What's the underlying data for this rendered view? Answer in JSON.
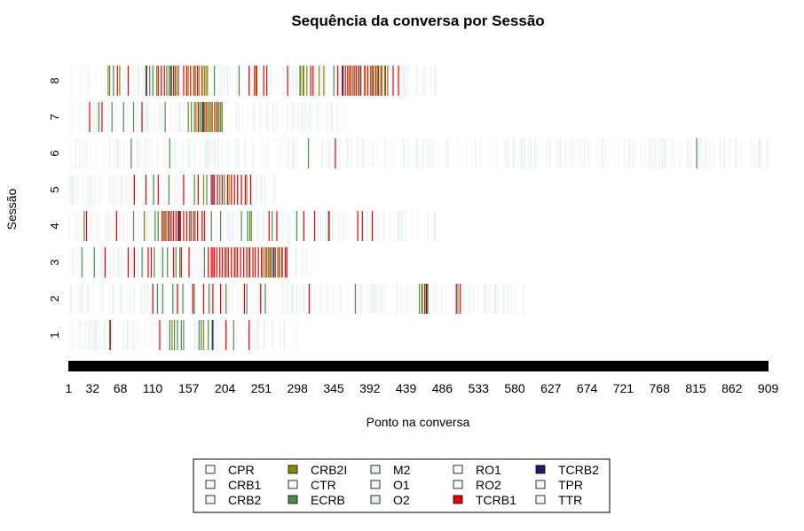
{
  "chart_data": {
    "type": "heatmap",
    "title": "Sequência da conversa por Sessão",
    "xlabel": "Ponto na conversa",
    "ylabel": "Sessão",
    "xlim": [
      1,
      909
    ],
    "x_ticks": [
      "1",
      "32",
      "68",
      "110",
      "157",
      "204",
      "251",
      "298",
      "345",
      "392",
      "439",
      "486",
      "533",
      "580",
      "627",
      "674",
      "721",
      "768",
      "815",
      "862",
      "909"
    ],
    "sessions": [
      {
        "label": "1",
        "length": 297,
        "events": [
          {
            "code": "TCRB1",
            "points": [
              55,
              119,
              205,
              235
            ]
          },
          {
            "code": "ECRB",
            "points": [
              54,
              132,
              138,
              142,
              147,
              150,
              170,
              173,
              182,
              187,
              215
            ]
          },
          {
            "code": "CRB2I",
            "points": [
              135,
              176
            ]
          },
          {
            "code": "TCRB2",
            "points": [
              188
            ]
          }
        ]
      },
      {
        "label": "2",
        "length": 591,
        "events": [
          {
            "code": "TCRB1",
            "points": [
              110,
              142,
              162,
              176,
              188,
              198,
              229,
              250,
              313,
              463,
              504,
              509
            ]
          },
          {
            "code": "ECRB",
            "points": [
              116,
              123,
              136,
              149,
              164,
              183,
              205,
              232,
              256,
              373,
              456,
              460,
              467,
              506
            ]
          },
          {
            "code": "CRB2I",
            "points": [
              459,
              466
            ]
          },
          {
            "code": "TCRB2",
            "points": [
              465
            ]
          }
        ]
      },
      {
        "label": "3",
        "length": 322,
        "events": [
          {
            "code": "TCRB1",
            "points": [
              48,
              78,
              86,
              104,
              108,
              137,
              147,
              157,
              182,
              186,
              188,
              190,
              193,
              197,
              200,
              205,
              208,
              212,
              216,
              220,
              224,
              228,
              232,
              236,
              240,
              243,
              247,
              251,
              256,
              262,
              269,
              274,
              278,
              282,
              284
            ]
          },
          {
            "code": "ECRB",
            "points": [
              18,
              34,
              96,
              112,
              123,
              129,
              140,
              145,
              177,
              203,
              218,
              235,
              258,
              265,
              277
            ]
          },
          {
            "code": "CRB2I",
            "points": [
              253,
              260,
              263,
              272
            ]
          },
          {
            "code": "TCRB2",
            "points": [
              267
            ]
          }
        ]
      },
      {
        "label": "4",
        "length": 478,
        "events": [
          {
            "code": "TCRB1",
            "points": [
              24,
              63,
              122,
              127,
              130,
              134,
              137,
              140,
              143,
              146,
              150,
              154,
              158,
              163,
              168,
              174,
              177,
              261,
              271,
              306,
              320,
              339,
              376,
              382,
              395
            ]
          },
          {
            "code": "ECRB",
            "points": [
              21,
              85,
              113,
              117,
              125,
              132,
              145,
              160,
              165,
              186,
              198,
              225,
              233,
              236,
              265,
              297,
              338
            ]
          },
          {
            "code": "CRB2I",
            "points": [
              99,
              124,
              238
            ]
          },
          {
            "code": "TCRB2",
            "points": [
              144
            ]
          }
        ]
      },
      {
        "label": "5",
        "length": 270,
        "events": [
          {
            "code": "TCRB1",
            "points": [
              86,
              101,
              117,
              150,
              169,
              186,
              190,
              194,
              200,
              207,
              212,
              216,
              220,
              225,
              230,
              237
            ]
          },
          {
            "code": "ECRB",
            "points": [
              111,
              131,
              164,
              180,
              197,
              203,
              232
            ]
          },
          {
            "code": "CRB2I",
            "points": [
              176,
              209
            ]
          },
          {
            "code": "TCRB2",
            "points": [
              188
            ]
          }
        ]
      },
      {
        "label": "6",
        "length": 909,
        "events": [
          {
            "code": "TCRB1",
            "points": [
              347
            ]
          },
          {
            "code": "ECRB",
            "points": [
              82,
              132,
              312,
              816
            ]
          }
        ]
      },
      {
        "label": "7",
        "length": 361,
        "events": [
          {
            "code": "TCRB1",
            "points": [
              28,
              44,
              96,
              169,
              179,
              187,
              194
            ]
          },
          {
            "code": "ECRB",
            "points": [
              40,
              57,
              72,
              85,
              126,
              156,
              164,
              173,
              176,
              183,
              190,
              196,
              200
            ]
          },
          {
            "code": "CRB2I",
            "points": [
              160,
              166,
              171,
              177,
              181,
              185,
              192,
              198
            ]
          },
          {
            "code": "TCRB2",
            "points": [
              175
            ]
          }
        ]
      },
      {
        "label": "8",
        "length": 480,
        "events": [
          {
            "code": "TCRB1",
            "points": [
              64,
              78,
              117,
              121,
              125,
              137,
              143,
              150,
              154,
              159,
              165,
              168,
              174,
              235,
              242,
              245,
              254,
              258,
              285,
              315,
              318,
              350,
              356,
              360,
              363,
              367,
              370,
              374,
              377,
              380,
              385,
              389,
              393,
              396,
              399,
              403,
              407,
              412,
              422,
              429
            ]
          },
          {
            "code": "ECRB",
            "points": [
              54,
              59,
              106,
              110,
              128,
              133,
              140,
              163,
              190,
              222,
              301,
              305,
              345,
              378,
              402,
              415
            ]
          },
          {
            "code": "CRB2I",
            "points": [
              52,
              67,
              101,
              115,
              131,
              139,
              156,
              163,
              170,
              177,
              179,
              181,
              244,
              302,
              306,
              310,
              326,
              332,
              365,
              372,
              386,
              395,
              400,
              406,
              411
            ]
          },
          {
            "code": "TCRB2",
            "points": [
              102,
              134,
              357
            ]
          }
        ]
      }
    ],
    "legend": {
      "placement": "bottom-center",
      "items": [
        {
          "code": "CPR",
          "color": "#ffffff"
        },
        {
          "code": "CRB1",
          "color": "#fdfafa"
        },
        {
          "code": "CRB2",
          "color": "#f6f8f8"
        },
        {
          "code": "CRB2I",
          "color": "#8b8b00"
        },
        {
          "code": "CTR",
          "color": "#fcfcfc"
        },
        {
          "code": "ECRB",
          "color": "#4f8b4f"
        },
        {
          "code": "M2",
          "color": "#e6f1f1"
        },
        {
          "code": "O1",
          "color": "#f2f5f5"
        },
        {
          "code": "O2",
          "color": "#dfeeee"
        },
        {
          "code": "RO1",
          "color": "#f7f7f7"
        },
        {
          "code": "RO2",
          "color": "#f9f6f6"
        },
        {
          "code": "TCRB1",
          "color": "#ee0000"
        },
        {
          "code": "TCRB2",
          "color": "#1a1a6e"
        },
        {
          "code": "TPR",
          "color": "#fcf7f7"
        },
        {
          "code": "TTR",
          "color": "#f5f9f9"
        }
      ]
    }
  }
}
